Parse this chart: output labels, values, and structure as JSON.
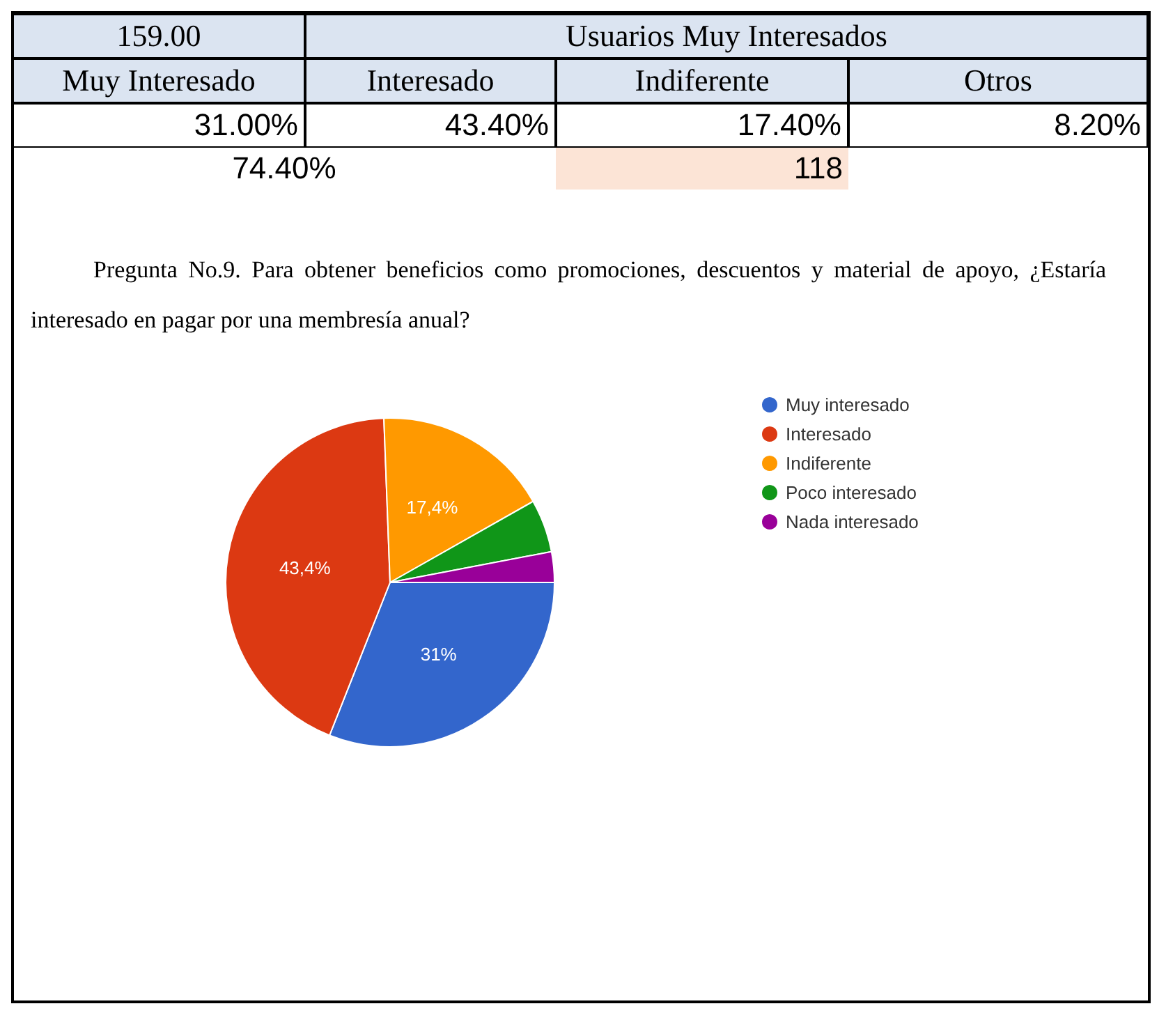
{
  "chart_data": [
    {
      "type": "other",
      "annotations": [
        "159.00",
        "Usuarios Muy Interesados",
        "Muy Interesado",
        "Interesado",
        "Indiferente",
        "Otros",
        "31.00%",
        "43.40%",
        "17.40%",
        "8.20%",
        "74.40%",
        "118"
      ]
    },
    {
      "type": "pie",
      "title": "Pregunta No.9. Para obtener beneficios como promociones, descuentos y material de apoyo, ¿Estaría interesado en pagar por una membresía anual?",
      "categories": [
        "Muy interesado",
        "Interesado",
        "Indiferente",
        "Poco interesado",
        "Nada interesado"
      ],
      "values": [
        31,
        43.4,
        17.4,
        5.2,
        3
      ],
      "colors": [
        "#3366cc",
        "#dc3912",
        "#ff9900",
        "#109618",
        "#990099"
      ],
      "value_labels": [
        "31%",
        "43,4%",
        "17,4%",
        null,
        null
      ],
      "legend": "right"
    }
  ]
}
